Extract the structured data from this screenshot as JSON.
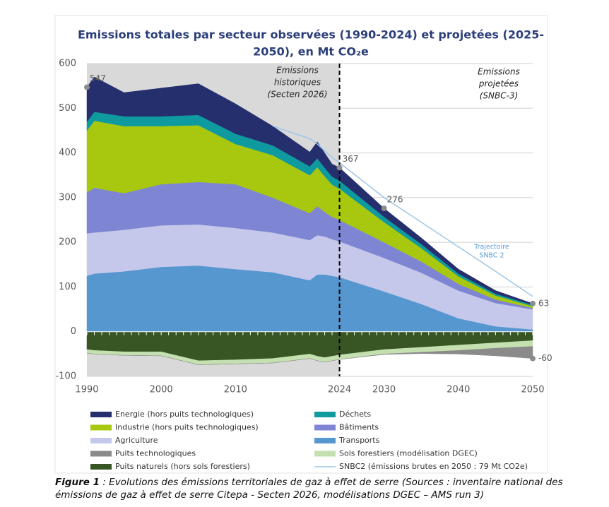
{
  "chart_data": {
    "type": "stacked-area",
    "title_lines": [
      "Emissions totales par secteur observées (1990-2024) et projetées (2025-",
      "2050), en Mt CO₂e"
    ],
    "x": [
      1990,
      1991,
      1995,
      2000,
      2005,
      2010,
      2015,
      2020,
      2021,
      2022,
      2023,
      2024,
      2030,
      2035,
      2040,
      2045,
      2050
    ],
    "series": [
      {
        "name": "Energie (hors puits technologiques)",
        "color": "#252f6e",
        "values": [
          77,
          78,
          53,
          63,
          70,
          67,
          43,
          32,
          37,
          33,
          28,
          29,
          19,
          14,
          10,
          7,
          3
        ]
      },
      {
        "name": "Déchets",
        "color": "#0f9aa0",
        "values": [
          20,
          20,
          22,
          22,
          23,
          23,
          22,
          20,
          20,
          19,
          18,
          18,
          12,
          9,
          6,
          4,
          3
        ]
      },
      {
        "name": "Industrie (hors puits technologiques)",
        "color": "#a8c70f",
        "values": [
          138,
          150,
          150,
          130,
          127,
          90,
          95,
          85,
          87,
          80,
          72,
          70,
          45,
          30,
          17,
          9,
          4
        ]
      },
      {
        "name": "Bâtiments",
        "color": "#7e86d4",
        "values": [
          92,
          100,
          82,
          92,
          95,
          98,
          78,
          60,
          65,
          55,
          50,
          48,
          35,
          25,
          15,
          8,
          3
        ]
      },
      {
        "name": "Agriculture",
        "color": "#c5c8ea",
        "values": [
          95,
          92,
          93,
          93,
          92,
          92,
          89,
          90,
          88,
          85,
          82,
          80,
          75,
          70,
          62,
          52,
          45
        ]
      },
      {
        "name": "Transports",
        "color": "#5797cf",
        "values": [
          125,
          130,
          135,
          145,
          148,
          140,
          133,
          115,
          128,
          128,
          125,
          122,
          90,
          62,
          30,
          12,
          5
        ]
      },
      {
        "name": "Puits technologiques",
        "color": "#8a8a8a",
        "values": [
          0,
          0,
          0,
          0,
          0,
          0,
          0,
          0,
          0,
          0,
          0,
          0,
          -1,
          -3,
          -8,
          -17,
          -27
        ]
      },
      {
        "name": "Sols forestiers (modélisation DGEC)",
        "color": "#c4e0b0",
        "values": [
          -8,
          -8,
          -8,
          -9,
          -9,
          -9,
          -10,
          -10,
          -10,
          -10,
          -10,
          -10,
          -10,
          -11,
          -12,
          -12,
          -13
        ]
      },
      {
        "name": "Puits naturels (hors sols forestiers)",
        "color": "#375623",
        "values": [
          -40,
          -42,
          -45,
          -45,
          -65,
          -63,
          -60,
          -50,
          -55,
          -58,
          -55,
          -52,
          -40,
          -35,
          -30,
          -25,
          -20
        ]
      },
      {
        "name": "SNBC2 (émissions brutes en 2050 : 79 Mt CO2e)",
        "color": "#9dc6e6",
        "type": "line",
        "values": [
          null,
          null,
          null,
          null,
          null,
          null,
          460,
          432,
          420,
          405,
          390,
          378,
          300,
          245,
          190,
          135,
          79
        ]
      }
    ],
    "xlim": [
      1990,
      2050
    ],
    "xticks": [
      1990,
      2000,
      2010,
      2024,
      2030,
      2040,
      2050
    ],
    "ylim": [
      -100,
      600
    ],
    "yticks": [
      -100,
      0,
      100,
      200,
      300,
      400,
      500,
      600
    ],
    "grid": true,
    "shade_xlim": [
      1990,
      2024
    ],
    "divider_x": 2024,
    "annotations": [
      {
        "x": 1990,
        "value": 547
      },
      {
        "x": 2024,
        "value": 367
      },
      {
        "x": 2030,
        "value": 276
      },
      {
        "x": 2050,
        "value": 63
      },
      {
        "x": 2050,
        "value": -60
      }
    ],
    "text_historic": [
      "Emissions",
      "historiques",
      "(Secten 2026)"
    ],
    "text_projected": [
      "Emissions",
      "projetées",
      "(SNBC-3)"
    ],
    "text_snbc2": [
      "Trajectoire",
      "SNBC 2"
    ],
    "caption_label": "Figure 1",
    "caption_text": " : Evolutions des émissions territoriales de gaz à effet de serre (Sources : inventaire national des émissions de gaz à effet de serre Citepa - Secten 2026, modélisations DGEC – AMS run 3)"
  }
}
